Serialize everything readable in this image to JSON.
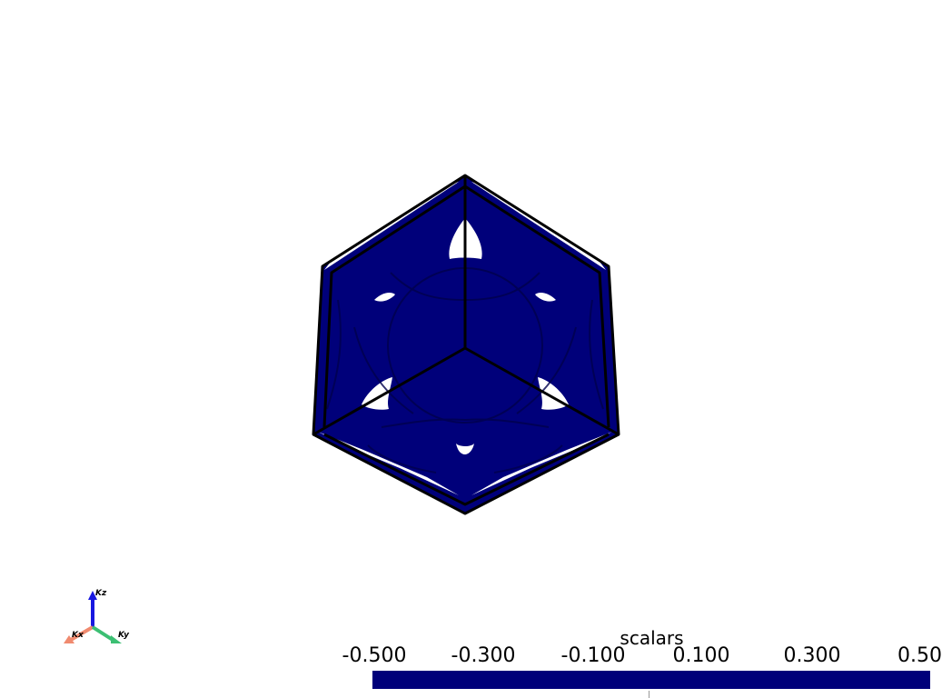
{
  "scene": {
    "surface_color": "#00007a",
    "surface_shadow": "#00004d",
    "edge_color": "#000000",
    "background": "#ffffff"
  },
  "axes": {
    "x_label": "Kx",
    "y_label": "Ky",
    "z_label": "Kz",
    "x_color": "#f08a6f",
    "y_color": "#3cbf73",
    "z_color": "#1818e0"
  },
  "scalar_bar": {
    "title": "scalars",
    "ticks": [
      "-0.500",
      "-0.300",
      "-0.100",
      "0.100",
      "0.300",
      "0.50"
    ],
    "range": [
      -0.5,
      0.5
    ],
    "color": "#00007a"
  }
}
